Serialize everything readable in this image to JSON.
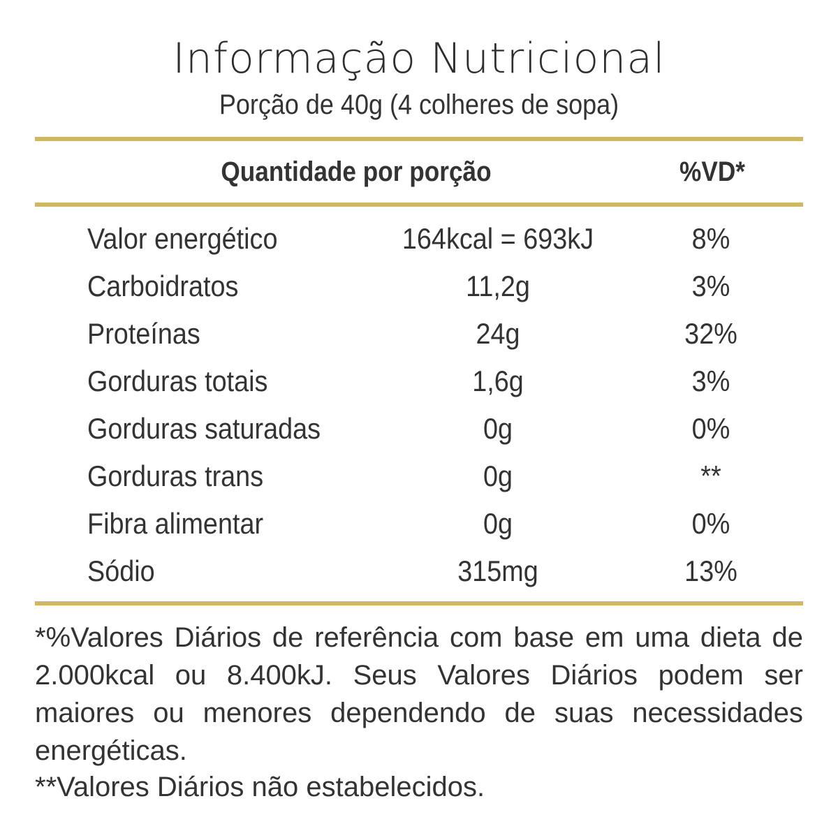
{
  "title": "Informação Nutricional",
  "subtitle": "Porção de 40g (4 colheres de sopa)",
  "header": {
    "quantity_label": "Quantidade por porção",
    "dv_label": "%VD*"
  },
  "rows": [
    {
      "label": "Valor energético",
      "amount": "164kcal = 693kJ",
      "dv": "8%"
    },
    {
      "label": "Carboidratos",
      "amount": "11,2g",
      "dv": "3%"
    },
    {
      "label": "Proteínas",
      "amount": "24g",
      "dv": "32%"
    },
    {
      "label": "Gorduras totais",
      "amount": "1,6g",
      "dv": "3%"
    },
    {
      "label": "Gorduras saturadas",
      "amount": "0g",
      "dv": "0%"
    },
    {
      "label": "Gorduras trans",
      "amount": "0g",
      "dv": "**"
    },
    {
      "label": "Fibra alimentar",
      "amount": "0g",
      "dv": "0%"
    },
    {
      "label": "Sódio",
      "amount": "315mg",
      "dv": "13%"
    }
  ],
  "footnotes": {
    "dv_reference": "*%Valores Diários de referência com base em uma dieta de 2.000kcal ou 8.400kJ.  Seus Valores Diários podem ser maiores ou menores dependendo de suas necessidades energéticas.",
    "not_established": "**Valores Diários não estabelecidos."
  },
  "colors": {
    "rule": "#d3b75c",
    "text": "#333333"
  }
}
